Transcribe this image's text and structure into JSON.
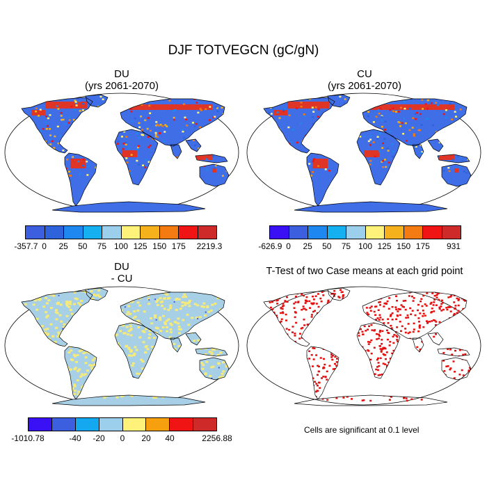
{
  "title": "DJF TOTVEGCN (gC/gN)",
  "panels": {
    "du": {
      "line1": "DU",
      "line2": "(yrs 2061-2070)"
    },
    "cu": {
      "line1": "CU",
      "line2": "(yrs 2061-2070)"
    },
    "diff": {
      "line1": "DU",
      "line2": "- CU"
    },
    "ttest": {
      "title": "T-Test of two Case means at each grid point"
    }
  },
  "colorbars": {
    "top_left": {
      "labels": [
        "-357.7",
        "0",
        "25",
        "50",
        "75",
        "100",
        "125",
        "150",
        "175",
        "2219.3"
      ],
      "colors": [
        "#3c5fe0",
        "#2e63db",
        "#1f87f0",
        "#14b0f0",
        "#9ccfec",
        "#fff27a",
        "#f6b21c",
        "#f37b12",
        "#f01414",
        "#cf2a2a"
      ]
    },
    "top_right": {
      "labels": [
        "-626.9",
        "0",
        "25",
        "50",
        "75",
        "100",
        "125",
        "150",
        "175",
        "931"
      ],
      "colors": [
        "#3a10f5",
        "#3c5fe0",
        "#1f87f0",
        "#14b0f0",
        "#9ccfec",
        "#fff27a",
        "#f6b21c",
        "#f37b12",
        "#f01414",
        "#cf2a2a"
      ]
    },
    "bottom_left": {
      "labels": [
        "-1010.78",
        "-40",
        "-20",
        "0",
        "20",
        "40",
        "2256.88"
      ],
      "colors": [
        "#3a10f5",
        "#3c5fe0",
        "#14a8f0",
        "#9ccfec",
        "#fff27a",
        "#f6a010",
        "#f01414",
        "#cf2a2a"
      ]
    }
  },
  "note": "Cells are significant at 0.1 level",
  "map_colors": {
    "du_base": "#3f6ee6",
    "du_warm": "#e8321c",
    "diff_base": "#a7cfe6",
    "diff_alt": "#f5ea7a",
    "ttest": "#e31010"
  }
}
